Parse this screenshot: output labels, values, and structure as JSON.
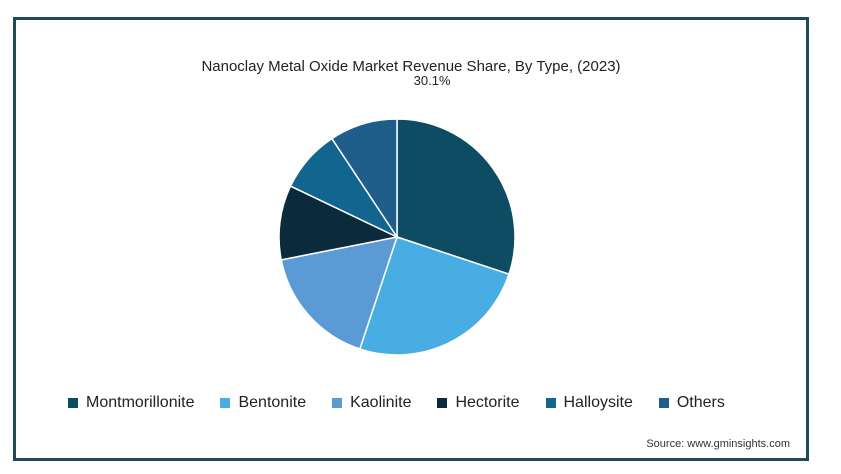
{
  "chart_data": {
    "type": "pie",
    "title": "Nanoclay Metal Oxide Market Revenue Share, By Type, (2023)",
    "categories": [
      "Montmorillonite",
      "Bentonite",
      "Kaolinite",
      "Hectorite",
      "Halloysite",
      "Others"
    ],
    "values": [
      30.1,
      25.0,
      16.8,
      10.2,
      8.6,
      9.3
    ],
    "colors": [
      "#0d4c63",
      "#48ade3",
      "#5c9ad6",
      "#0b2a3b",
      "#12658f",
      "#1f5d8a"
    ],
    "data_labels": [
      {
        "category": "Montmorillonite",
        "text": "30.1%"
      }
    ],
    "legend_position": "bottom",
    "start_angle_deg": 0,
    "direction": "clockwise"
  },
  "source": "Source: www.gminsights.com"
}
